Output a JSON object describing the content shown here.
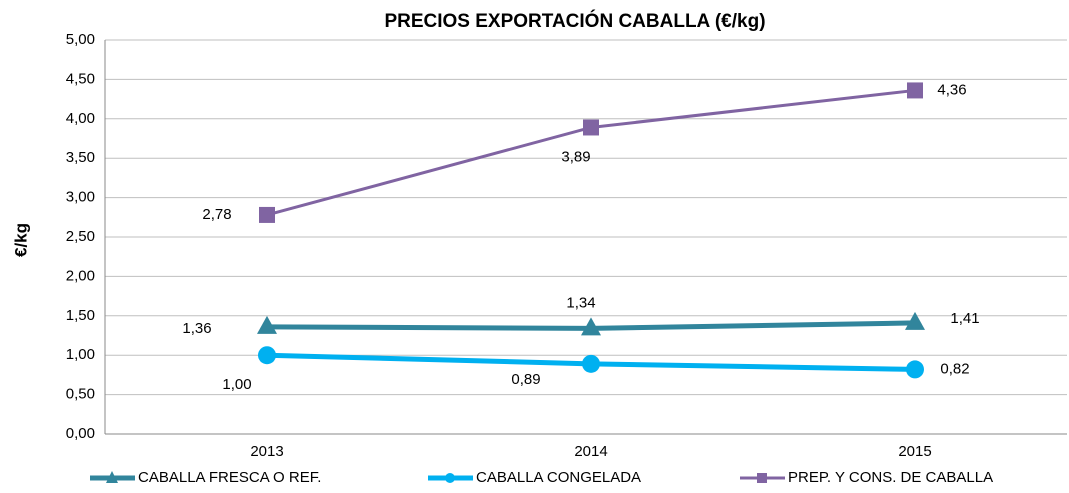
{
  "chart_data": {
    "type": "line",
    "title": "PRECIOS EXPORTACIÓN CABALLA  (€/kg)",
    "y_label": "€/kg",
    "categories": [
      "2013",
      "2014",
      "2015"
    ],
    "series": [
      {
        "name": "CABALLA FRESCA O REF.",
        "color": "#31859c",
        "marker": "triangle",
        "values": [
          1.36,
          1.34,
          1.41
        ],
        "value_labels": [
          "1,36",
          "1,34",
          "1,41"
        ]
      },
      {
        "name": "CABALLA CONGELADA",
        "color": "#00b0f0",
        "marker": "circle",
        "values": [
          1.0,
          0.89,
          0.82
        ],
        "value_labels": [
          "1,00",
          "0,89",
          "0,82"
        ]
      },
      {
        "name": "PREP. Y CONS. DE CABALLA",
        "color": "#8064a2",
        "marker": "square",
        "values": [
          2.78,
          3.89,
          4.36
        ],
        "value_labels": [
          "2,78",
          "3,89",
          "4,36"
        ]
      }
    ],
    "ylim": [
      0,
      5
    ],
    "yticks": [
      {
        "value": 0,
        "label": "0,00"
      },
      {
        "value": 0.5,
        "label": "0,50"
      },
      {
        "value": 1,
        "label": "1,00"
      },
      {
        "value": 1.5,
        "label": "1,50"
      },
      {
        "value": 2,
        "label": "2,00"
      },
      {
        "value": 2.5,
        "label": "2,50"
      },
      {
        "value": 3,
        "label": "3,00"
      },
      {
        "value": 3.5,
        "label": "3,50"
      },
      {
        "value": 4,
        "label": "4,00"
      },
      {
        "value": 4.5,
        "label": "4,50"
      },
      {
        "value": 5,
        "label": "5,00"
      }
    ],
    "grid": true,
    "legend": "bottom"
  }
}
